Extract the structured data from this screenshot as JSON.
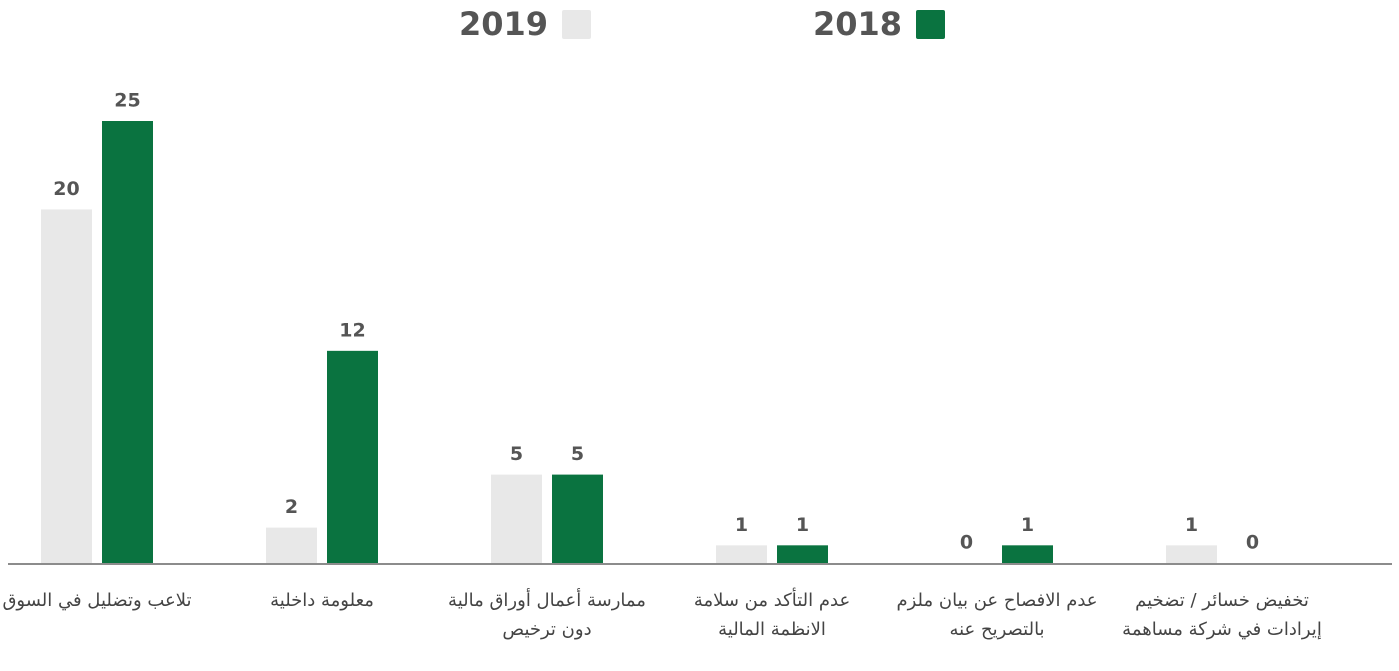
{
  "chart_data": {
    "type": "bar",
    "categories": [
      "تلاعب وتضليل في السوق",
      "معلومة داخلية",
      "ممارسة أعمال أوراق مالية دون ترخيص",
      "عدم التأكد من سلامة الانظمة المالية",
      "عدم الافصاح عن بيان ملزم بالتصريح عنه",
      "تخفيض خسائر / تضخيم إيرادات في شركة مساهمة"
    ],
    "series": [
      {
        "name": "2019",
        "color": "#e8e8e8",
        "values": [
          20,
          2,
          5,
          1,
          0,
          1
        ]
      },
      {
        "name": "2018",
        "color": "#0a7340",
        "values": [
          25,
          12,
          5,
          1,
          1,
          0
        ]
      }
    ],
    "ylim": [
      0,
      25
    ]
  }
}
